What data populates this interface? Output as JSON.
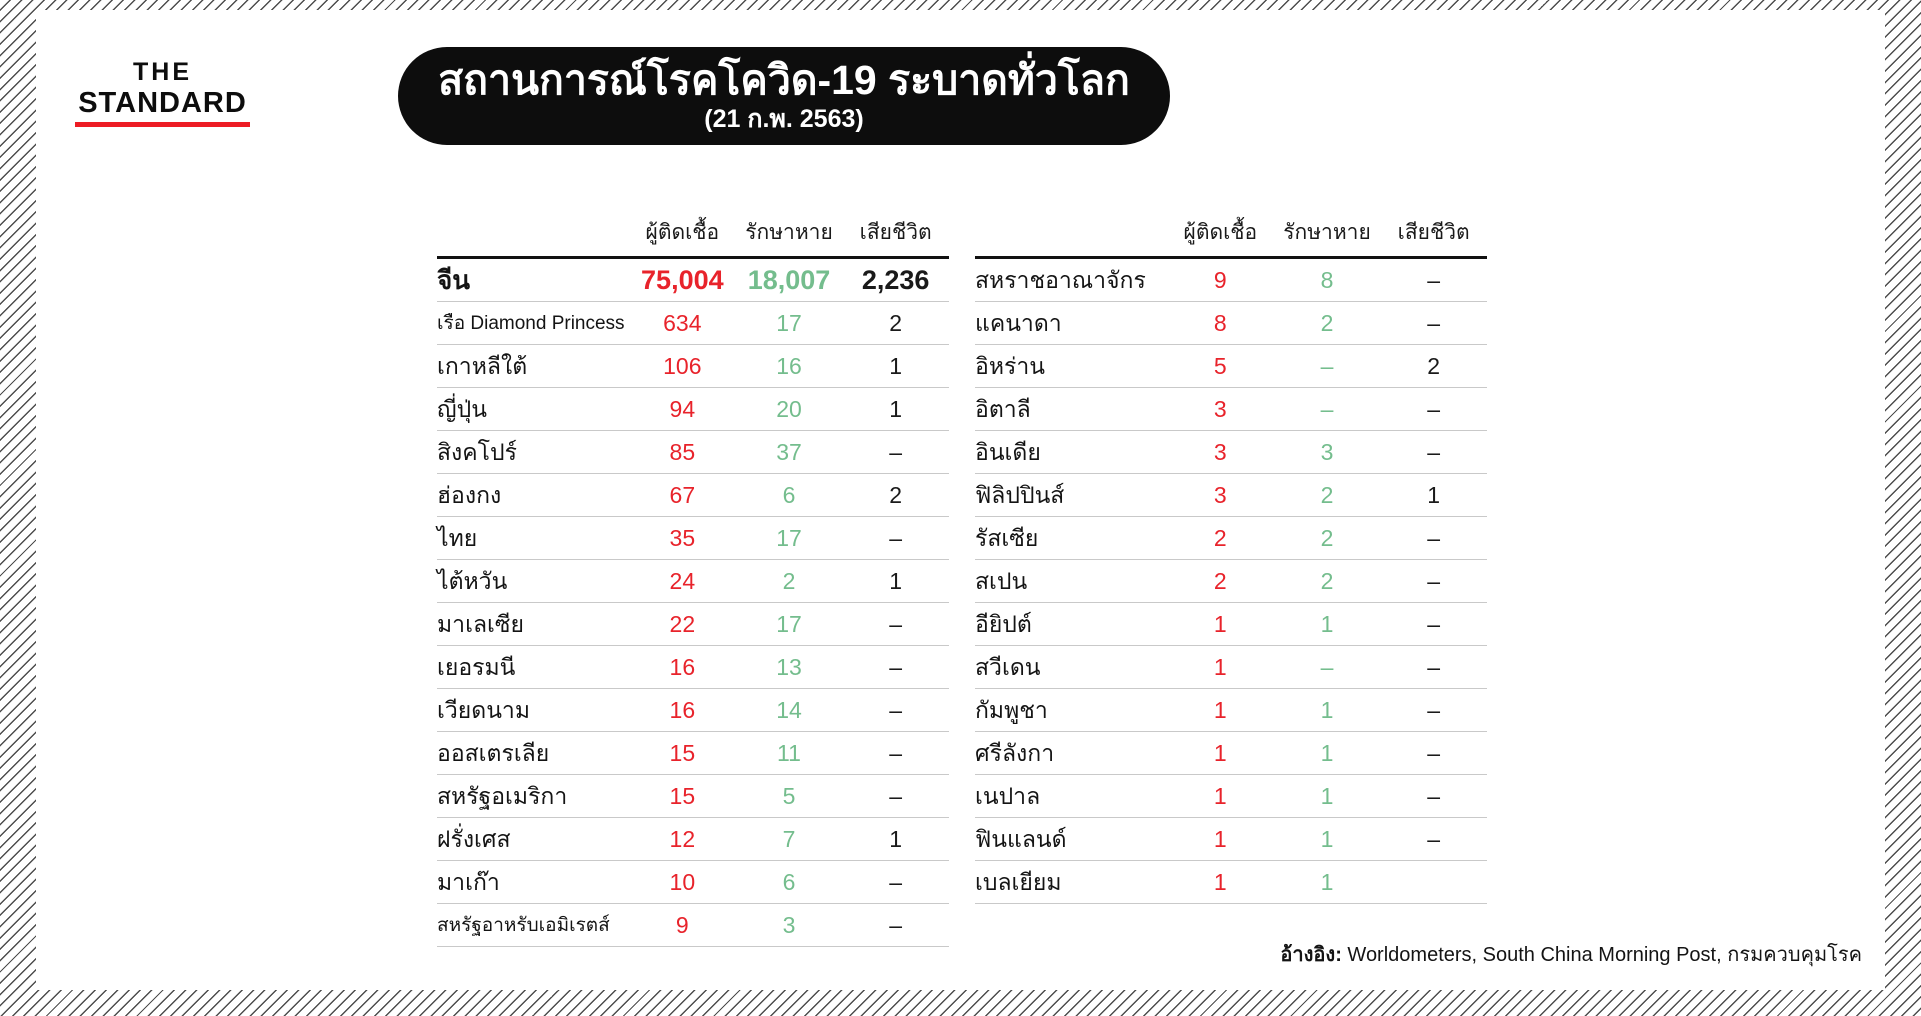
{
  "brand": {
    "line1": "THE",
    "line2": "STANDARD"
  },
  "header": {
    "title": "สถานการณ์โรคโควิด-19 ระบาดทั่วโลก",
    "subtitle": "(21 ก.พ. 2563)"
  },
  "footer": {
    "label": "อ้างอิง:",
    "text": "Worldometers, South China Morning Post, กรมควบคุมโรค"
  },
  "colors": {
    "infected": "#e8232b",
    "recovered": "#74bd8d",
    "deaths": "#1a1a1a",
    "brand_underline": "#ed1c24",
    "banner_bg": "#0d0d0d"
  },
  "chart_data": {
    "type": "table",
    "title": "สถานการณ์โรคโควิด-19 ระบาดทั่วโลก",
    "subtitle": "(21 ก.พ. 2563)",
    "columns": [
      "ผู้ติดเชื้อ",
      "รักษาหาย",
      "เสียชีวิต"
    ],
    "tables": [
      {
        "rows": [
          {
            "name": "จีน",
            "infected": "75,004",
            "recovered": "18,007",
            "deaths": "2,236",
            "emphasis": true
          },
          {
            "name": "เรือ Diamond Princess",
            "infected": "634",
            "recovered": "17",
            "deaths": "2",
            "small": true
          },
          {
            "name": "เกาหลีใต้",
            "infected": "106",
            "recovered": "16",
            "deaths": "1"
          },
          {
            "name": "ญี่ปุ่น",
            "infected": "94",
            "recovered": "20",
            "deaths": "1"
          },
          {
            "name": "สิงคโปร์",
            "infected": "85",
            "recovered": "37",
            "deaths": "–"
          },
          {
            "name": "ฮ่องกง",
            "infected": "67",
            "recovered": "6",
            "deaths": "2"
          },
          {
            "name": "ไทย",
            "infected": "35",
            "recovered": "17",
            "deaths": "–"
          },
          {
            "name": "ไต้หวัน",
            "infected": "24",
            "recovered": "2",
            "deaths": "1"
          },
          {
            "name": "มาเลเซีย",
            "infected": "22",
            "recovered": "17",
            "deaths": "–"
          },
          {
            "name": "เยอรมนี",
            "infected": "16",
            "recovered": "13",
            "deaths": "–"
          },
          {
            "name": "เวียดนาม",
            "infected": "16",
            "recovered": "14",
            "deaths": "–"
          },
          {
            "name": "ออสเตรเลีย",
            "infected": "15",
            "recovered": "11",
            "deaths": "–"
          },
          {
            "name": "สหรัฐอเมริกา",
            "infected": "15",
            "recovered": "5",
            "deaths": "–"
          },
          {
            "name": "ฝรั่งเศส",
            "infected": "12",
            "recovered": "7",
            "deaths": "1"
          },
          {
            "name": "มาเก๊า",
            "infected": "10",
            "recovered": "6",
            "deaths": "–"
          },
          {
            "name": "สหรัฐอาหรับเอมิเรตส์",
            "infected": "9",
            "recovered": "3",
            "deaths": "–",
            "small": true
          }
        ]
      },
      {
        "rows": [
          {
            "name": "สหราชอาณาจักร",
            "infected": "9",
            "recovered": "8",
            "deaths": "–"
          },
          {
            "name": "แคนาดา",
            "infected": "8",
            "recovered": "2",
            "deaths": "–"
          },
          {
            "name": "อิหร่าน",
            "infected": "5",
            "recovered": "–",
            "deaths": "2"
          },
          {
            "name": "อิตาลี",
            "infected": "3",
            "recovered": "–",
            "deaths": "–"
          },
          {
            "name": "อินเดีย",
            "infected": "3",
            "recovered": "3",
            "deaths": "–"
          },
          {
            "name": "ฟิลิปปินส์",
            "infected": "3",
            "recovered": "2",
            "deaths": "1"
          },
          {
            "name": "รัสเซีย",
            "infected": "2",
            "recovered": "2",
            "deaths": "–"
          },
          {
            "name": "สเปน",
            "infected": "2",
            "recovered": "2",
            "deaths": "–"
          },
          {
            "name": "อียิปต์",
            "infected": "1",
            "recovered": "1",
            "deaths": "–"
          },
          {
            "name": "สวีเดน",
            "infected": "1",
            "recovered": "–",
            "deaths": "–"
          },
          {
            "name": "กัมพูชา",
            "infected": "1",
            "recovered": "1",
            "deaths": "–"
          },
          {
            "name": "ศรีลังกา",
            "infected": "1",
            "recovered": "1",
            "deaths": "–"
          },
          {
            "name": "เนปาล",
            "infected": "1",
            "recovered": "1",
            "deaths": "–"
          },
          {
            "name": "ฟินแลนด์",
            "infected": "1",
            "recovered": "1",
            "deaths": "–"
          },
          {
            "name": "เบลเยียม",
            "infected": "1",
            "recovered": "1",
            "deaths": ""
          }
        ]
      }
    ]
  }
}
